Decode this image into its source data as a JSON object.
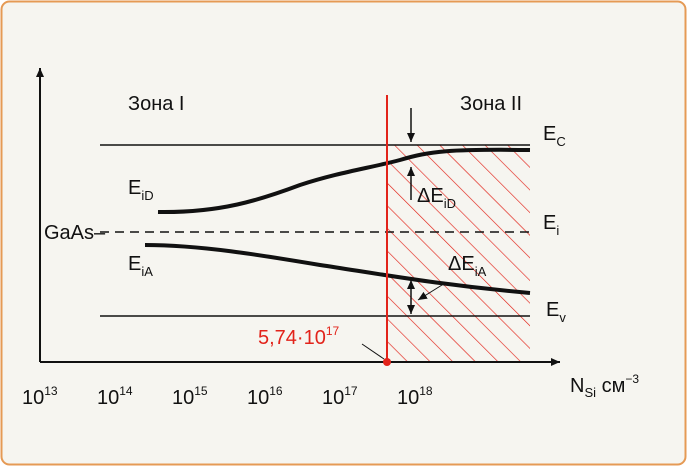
{
  "zones": [
    "Зона I",
    "Зона II"
  ],
  "levels": [
    {
      "symbol": "E",
      "sub": "C"
    },
    {
      "symbol": "E",
      "sub": "iD"
    },
    {
      "symbol": "ΔE",
      "sub": "iD"
    },
    {
      "symbol": "E",
      "sub": "i"
    },
    {
      "symbol": "E",
      "sub": "iA"
    },
    {
      "symbol": "ΔE",
      "sub": "iA"
    },
    {
      "symbol": "E",
      "sub": "v"
    }
  ],
  "material": "GaAs–",
  "x_axis": {
    "ticks": [
      {
        "base": "10",
        "exp": "13"
      },
      {
        "base": "10",
        "exp": "14"
      },
      {
        "base": "10",
        "exp": "15"
      },
      {
        "base": "10",
        "exp": "16"
      },
      {
        "base": "10",
        "exp": "17"
      },
      {
        "base": "10",
        "exp": "18"
      }
    ],
    "label": {
      "symbol": "N",
      "sub": "Si",
      "unit": " см",
      "exp": "−3"
    }
  },
  "marker": {
    "mantissa": "5,74·10",
    "exp": "17"
  }
}
